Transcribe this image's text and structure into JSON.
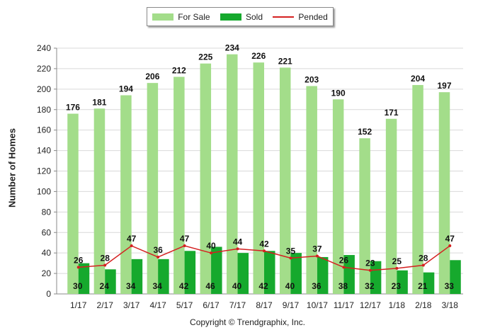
{
  "legend": {
    "for_sale": "For Sale",
    "sold": "Sold",
    "pended": "Pended"
  },
  "colors": {
    "for_sale": "#a3dd8a",
    "sold": "#16a92d",
    "pended": "#d42020",
    "grid": "#d9d9d9"
  },
  "footer": {
    "copyright": "Copyright © Trendgraphix, Inc."
  },
  "chart_data": {
    "type": "bar",
    "ylabel": "Number of Homes",
    "xlabel": "",
    "ylim": [
      0,
      240
    ],
    "yticks": [
      0,
      20,
      40,
      60,
      80,
      100,
      120,
      140,
      160,
      180,
      200,
      220,
      240
    ],
    "grid": true,
    "legend_position": "top-center",
    "categories": [
      "1/17",
      "2/17",
      "3/17",
      "4/17",
      "5/17",
      "6/17",
      "7/17",
      "8/17",
      "9/17",
      "10/17",
      "11/17",
      "12/17",
      "1/18",
      "2/18",
      "3/18"
    ],
    "series": [
      {
        "name": "For Sale",
        "kind": "bar",
        "values": [
          176,
          181,
          194,
          206,
          212,
          225,
          234,
          226,
          221,
          203,
          190,
          152,
          171,
          204,
          197
        ]
      },
      {
        "name": "Sold",
        "kind": "bar",
        "values": [
          30,
          24,
          34,
          34,
          42,
          46,
          40,
          42,
          40,
          36,
          38,
          32,
          23,
          21,
          33
        ]
      },
      {
        "name": "Pended",
        "kind": "line",
        "values": [
          26,
          28,
          47,
          36,
          47,
          40,
          44,
          42,
          35,
          37,
          26,
          23,
          25,
          28,
          47
        ]
      }
    ]
  }
}
